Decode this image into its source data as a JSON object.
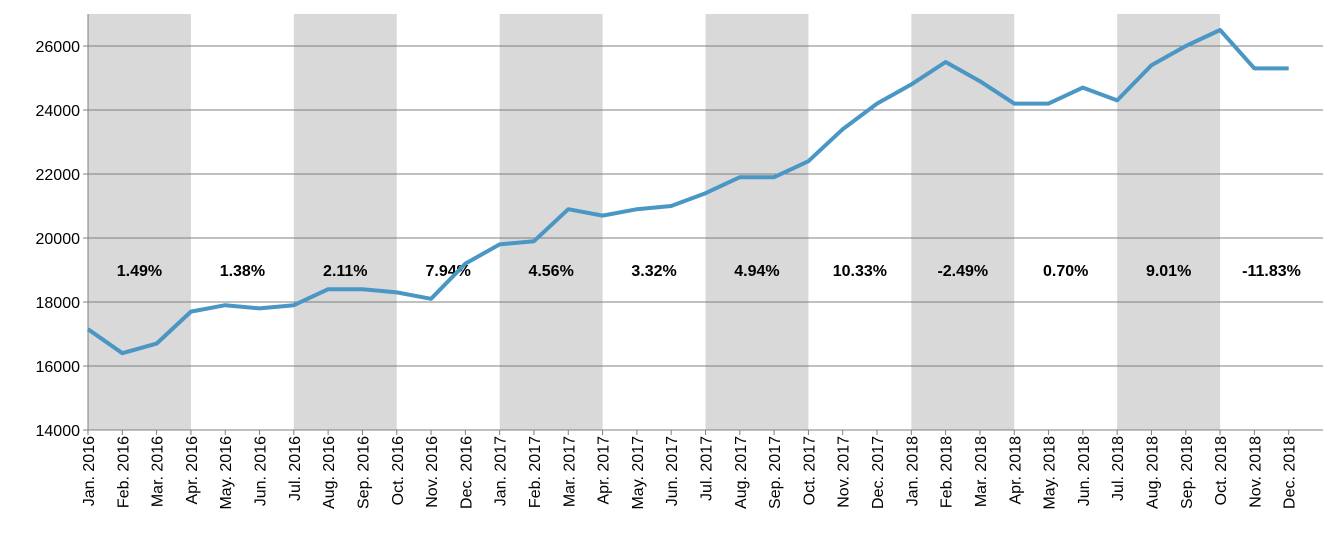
{
  "chart_data": {
    "type": "line",
    "categories": [
      "Jan. 2016",
      "Feb. 2016",
      "Mar. 2016",
      "Apr. 2016",
      "May. 2016",
      "Jun. 2016",
      "Jul. 2016",
      "Aug. 2016",
      "Sep. 2016",
      "Oct. 2016",
      "Nov. 2016",
      "Dec. 2016",
      "Jan. 2017",
      "Feb. 2017",
      "Mar. 2017",
      "Apr. 2017",
      "May. 2017",
      "Jun. 2017",
      "Jul. 2017",
      "Aug. 2017",
      "Sep. 2017",
      "Oct. 2017",
      "Nov. 2017",
      "Dec. 2017",
      "Jan. 2018",
      "Feb. 2018",
      "Mar. 2018",
      "Apr. 2018",
      "May. 2018",
      "Jun. 2018",
      "Jul. 2018",
      "Aug. 2018",
      "Sep. 2018",
      "Oct. 2018",
      "Nov. 2018",
      "Dec. 2018"
    ],
    "series": [
      {
        "color": "#4a96c4",
        "values": [
          17150,
          16400,
          16700,
          17700,
          17900,
          17800,
          17900,
          18400,
          18400,
          18300,
          18100,
          19200,
          19800,
          19900,
          20900,
          20700,
          20900,
          21000,
          21400,
          21900,
          21900,
          22400,
          23400,
          24200,
          24800,
          25500,
          24900,
          24200,
          24200,
          24700,
          24300,
          25400,
          26000,
          26500,
          25300,
          25300
        ]
      }
    ],
    "quarters": {
      "values": [
        1.49,
        1.38,
        2.11,
        7.94,
        4.56,
        3.32,
        4.94,
        10.33,
        -2.49,
        0.7,
        9.01,
        -11.83
      ],
      "value_labels": [
        "1.49%",
        "1.38%",
        "2.11%",
        "7.94%",
        "4.56%",
        "3.32%",
        "4.94%",
        "10.33%",
        "-2.49%",
        "0.70%",
        "9.01%",
        "-11.83%"
      ]
    },
    "ylim": [
      14000,
      27000
    ],
    "yticks": [
      14000,
      16000,
      18000,
      20000,
      22000,
      24000,
      26000
    ],
    "grid": true
  }
}
